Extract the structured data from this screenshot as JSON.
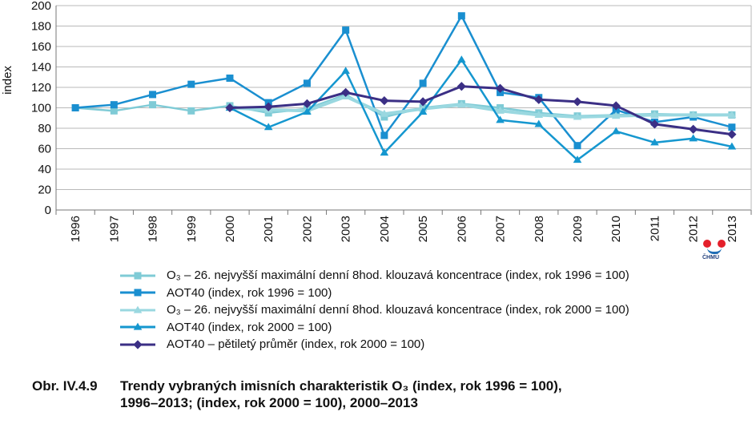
{
  "chart_data": {
    "type": "line",
    "ylabel": "index",
    "ylim": [
      0,
      200
    ],
    "yticks": [
      0,
      20,
      40,
      60,
      80,
      100,
      120,
      140,
      160,
      180,
      200
    ],
    "grid": true,
    "categories": [
      "1996",
      "1997",
      "1998",
      "1999",
      "2000",
      "2001",
      "2002",
      "2003",
      "2004",
      "2005",
      "2006",
      "2007",
      "2008",
      "2009",
      "2010",
      "2011",
      "2012",
      "2013"
    ],
    "series": [
      {
        "name": "O₃ – 26. nejvyšší maximální denní 8hod. klouzavá koncentrace (index, rok 1996 = 100)",
        "color": "#7fcbd6",
        "marker": "square",
        "width": 2.5,
        "values": [
          100,
          97,
          103,
          97,
          102,
          95,
          99,
          113,
          91,
          100,
          104,
          100,
          95,
          92,
          93,
          94,
          93,
          93
        ]
      },
      {
        "name": "AOT40 (index, rok 1996 = 100)",
        "color": "#1a8fd0",
        "marker": "square",
        "width": 2.5,
        "values": [
          100,
          103,
          113,
          123,
          129,
          105,
          124,
          176,
          73,
          124,
          190,
          115,
          110,
          63,
          98,
          86,
          91,
          81
        ]
      },
      {
        "name": "O₃ – 26. nejvyšší maximální denní 8hod. klouzavá koncentrace (index, rok 2000 = 100)",
        "color": "#9ad8e0",
        "marker": "triangle",
        "width": 4,
        "values": [
          null,
          null,
          null,
          null,
          100,
          98,
          97,
          111,
          94,
          99,
          103,
          97,
          93,
          91,
          92,
          93,
          93,
          93
        ]
      },
      {
        "name": "AOT40 (index, rok 2000 = 100)",
        "color": "#1597cf",
        "marker": "triangle",
        "width": 2.5,
        "values": [
          null,
          null,
          null,
          null,
          100,
          81,
          96,
          136,
          56,
          96,
          147,
          88,
          84,
          49,
          77,
          66,
          70,
          62
        ]
      },
      {
        "name": "AOT40 – pětiletý průměr (index, rok 2000 = 100)",
        "color": "#3b2f85",
        "marker": "diamond",
        "width": 3,
        "values": [
          null,
          null,
          null,
          null,
          100,
          101,
          104,
          115,
          107,
          106,
          121,
          119,
          108,
          106,
          102,
          84,
          79,
          74
        ]
      }
    ]
  },
  "legend": [
    {
      "text": "O₃ – 26. nejvyšší maximální denní 8hod. klouzavá koncentrace (index, rok 1996 = 100)",
      "color": "#7fcbd6",
      "marker": "square"
    },
    {
      "text": "AOT40 (index, rok 1996 = 100)",
      "color": "#1a8fd0",
      "marker": "square"
    },
    {
      "text": "O₃ – 26. nejvyšší maximální denní 8hod. klouzavá koncentrace (index, rok 2000 = 100)",
      "color": "#9ad8e0",
      "marker": "triangle"
    },
    {
      "text": "AOT40 (index, rok 2000 = 100)",
      "color": "#1597cf",
      "marker": "triangle"
    },
    {
      "text": "AOT40 – pětiletý průměr (index, rok 2000 = 100)",
      "color": "#3b2f85",
      "marker": "diamond"
    }
  ],
  "caption": {
    "number": "Obr. IV.4.9",
    "line1": "Trendy vybraných imisních charakteristik O₃ (index, rok 1996 = 100),",
    "line2": "1996–2013; (index, rok 2000 = 100), 2000–2013"
  },
  "logo": {
    "text": "ČHMÚ"
  }
}
